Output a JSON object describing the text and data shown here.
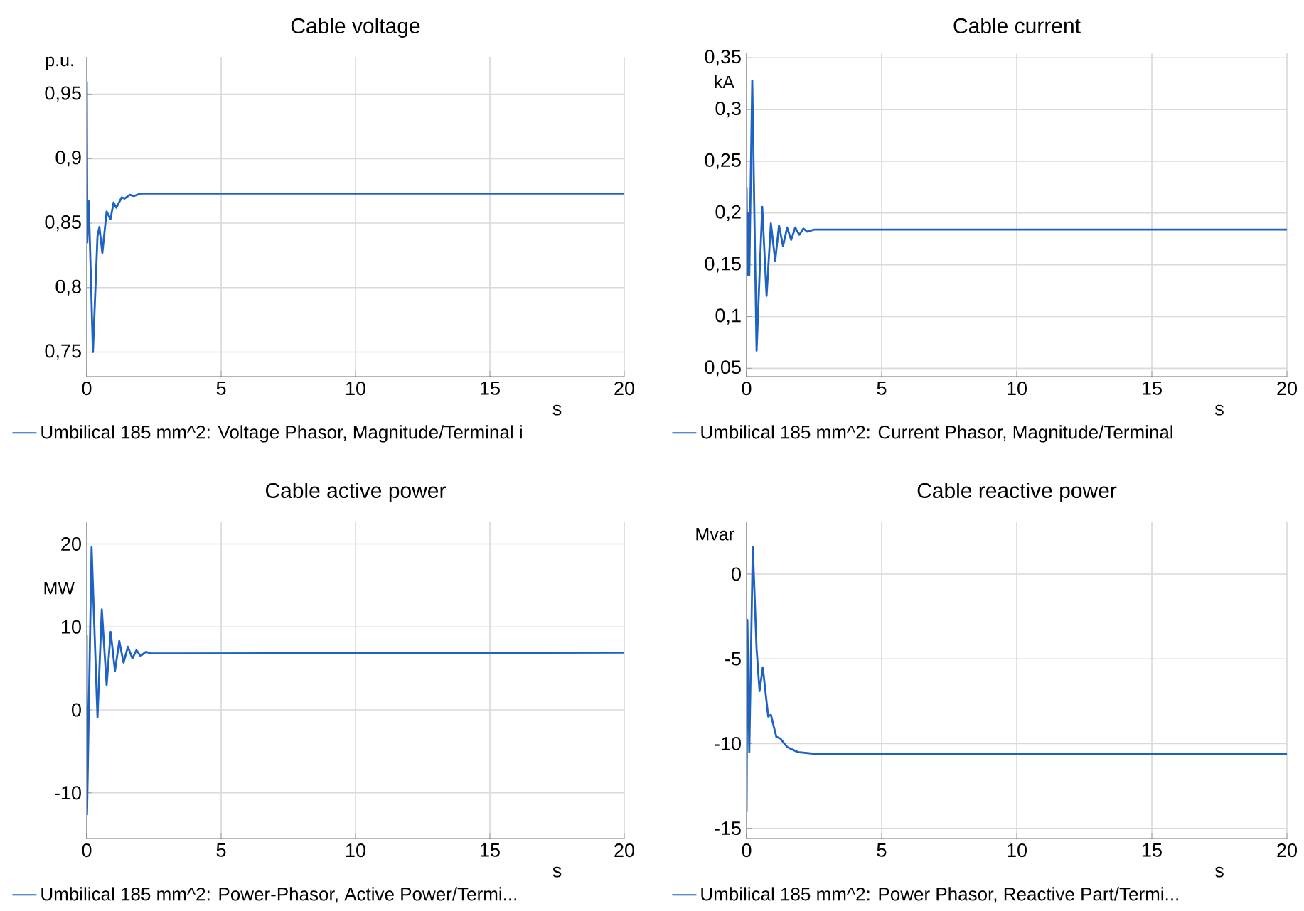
{
  "chart_data": [
    {
      "type": "line",
      "title": "Cable voltage",
      "xlabel": "s",
      "ylabel": "p.u.",
      "grid": true,
      "legend": "bottom",
      "xlim": [
        0,
        20
      ],
      "xticks": [
        0,
        5,
        10,
        15,
        20
      ],
      "ylim": [
        0.731,
        0.979
      ],
      "yticks": [
        {
          "value": 0.75,
          "label": "0,75"
        },
        {
          "value": 0.8,
          "label": "0,8"
        },
        {
          "value": 0.85,
          "label": "0,85"
        },
        {
          "value": 0.9,
          "label": "0,9"
        },
        {
          "value": 0.95,
          "label": "0,95"
        }
      ],
      "x": [
        0,
        0.02,
        0.07,
        0.12,
        0.23,
        0.4,
        0.47,
        0.58,
        0.74,
        0.88,
        1.0,
        1.1,
        1.3,
        1.4,
        1.6,
        1.75,
        2.0,
        2.5,
        20
      ],
      "series": [
        {
          "name": "Umbilical 185 mm^2: Voltage Phasor, Magnitude/Terminal i",
          "color": "#1e63c4",
          "values": [
            0.96,
            0.835,
            0.867,
            0.833,
            0.75,
            0.84,
            0.847,
            0.827,
            0.859,
            0.853,
            0.866,
            0.862,
            0.87,
            0.869,
            0.872,
            0.871,
            0.873,
            0.873,
            0.873
          ]
        }
      ]
    },
    {
      "type": "line",
      "title": "Cable current",
      "xlabel": "s",
      "ylabel": "kA",
      "grid": true,
      "legend": "bottom",
      "xlim": [
        0,
        20
      ],
      "xticks": [
        0,
        5,
        10,
        15,
        20
      ],
      "ylim": [
        0.042,
        0.355
      ],
      "yticks": [
        {
          "value": 0.05,
          "label": "0,05"
        },
        {
          "value": 0.1,
          "label": "0,1"
        },
        {
          "value": 0.15,
          "label": "0,15"
        },
        {
          "value": 0.2,
          "label": "0,2"
        },
        {
          "value": 0.25,
          "label": "0,25"
        },
        {
          "value": 0.3,
          "label": "0,3"
        },
        {
          "value": 0.35,
          "label": "0,35"
        }
      ],
      "x": [
        0,
        0.03,
        0.06,
        0.1,
        0.21,
        0.37,
        0.58,
        0.74,
        0.9,
        1.06,
        1.2,
        1.35,
        1.5,
        1.65,
        1.8,
        1.95,
        2.1,
        2.25,
        2.5,
        20
      ],
      "series": [
        {
          "name": "Umbilical 185 mm^2: Current Phasor, Magnitude/Terminal",
          "color": "#1e63c4",
          "values": [
            0.225,
            0.14,
            0.2,
            0.14,
            0.328,
            0.067,
            0.206,
            0.12,
            0.19,
            0.154,
            0.188,
            0.168,
            0.186,
            0.174,
            0.186,
            0.179,
            0.185,
            0.182,
            0.184,
            0.184
          ]
        }
      ]
    },
    {
      "type": "line",
      "title": "Cable active power",
      "xlabel": "s",
      "ylabel": "MW",
      "grid": true,
      "legend": "bottom",
      "xlim": [
        0,
        20
      ],
      "xticks": [
        0,
        5,
        10,
        15,
        20
      ],
      "ylim": [
        -15.5,
        22.7
      ],
      "yticks": [
        -10,
        0,
        10,
        20
      ],
      "x": [
        0,
        0.01,
        0.18,
        0.4,
        0.56,
        0.74,
        0.89,
        1.05,
        1.21,
        1.37,
        1.53,
        1.7,
        1.85,
        2.0,
        2.2,
        2.4,
        20
      ],
      "series": [
        {
          "name": "Umbilical 185 mm^2: Power-Phasor, Active Power/Termi...",
          "color": "#1e63c4",
          "values": [
            9,
            -12.6,
            19.6,
            -0.9,
            12.1,
            3,
            9.4,
            4.7,
            8.3,
            5.7,
            7.6,
            6.2,
            7.2,
            6.5,
            7.0,
            6.8,
            6.9
          ]
        }
      ]
    },
    {
      "type": "line",
      "title": "Cable reactive power",
      "xlabel": "s",
      "ylabel": "Mvar",
      "grid": true,
      "legend": "bottom",
      "xlim": [
        0,
        20
      ],
      "xticks": [
        0,
        5,
        10,
        15,
        20
      ],
      "ylim": [
        -15.6,
        3.1
      ],
      "yticks": [
        -15,
        -10,
        -5,
        0
      ],
      "x": [
        0,
        0.03,
        0.1,
        0.23,
        0.37,
        0.48,
        0.6,
        0.8,
        0.9,
        1.1,
        1.25,
        1.5,
        1.9,
        2.5,
        3,
        20
      ],
      "series": [
        {
          "name": "Umbilical 185 mm^2: Power Phasor, Reactive Part/Termi...",
          "color": "#1e63c4",
          "values": [
            -14,
            -2.7,
            -10.5,
            1.6,
            -4.4,
            -6.9,
            -5.5,
            -8.4,
            -8.3,
            -9.6,
            -9.7,
            -10.2,
            -10.5,
            -10.6,
            -10.6,
            -10.6
          ]
        }
      ]
    }
  ]
}
